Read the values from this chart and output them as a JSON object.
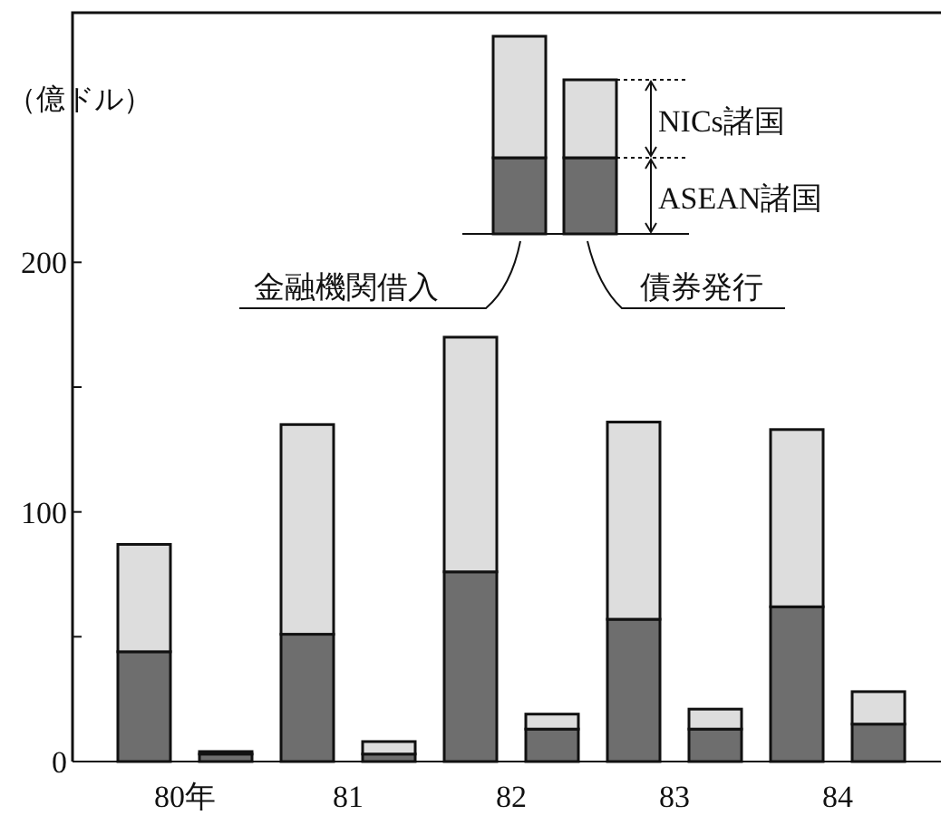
{
  "chart_data": {
    "type": "bar",
    "stacked": true,
    "ylabel": "（億ドル）",
    "categories": [
      "80年",
      null,
      "81",
      null,
      "82",
      null,
      "83",
      null,
      "84",
      null
    ],
    "ylim": [
      0,
      300
    ],
    "yticks": [
      0,
      {
        "value": 50,
        "label": null
      },
      100,
      {
        "value": 150,
        "label": null
      },
      200
    ],
    "annotations": [
      "金融機関借入",
      "債券発行"
    ],
    "legend": "top",
    "series": [
      {
        "name": "ASEAN諸国",
        "color": "#6e6e6e",
        "values": [
          44,
          3,
          51,
          3,
          76,
          13,
          57,
          13,
          62,
          15
        ]
      },
      {
        "name": "NICs諸国",
        "color": "#dddddd",
        "values": [
          43,
          1,
          84,
          5,
          94,
          6,
          79,
          8,
          71,
          13
        ]
      }
    ]
  }
}
